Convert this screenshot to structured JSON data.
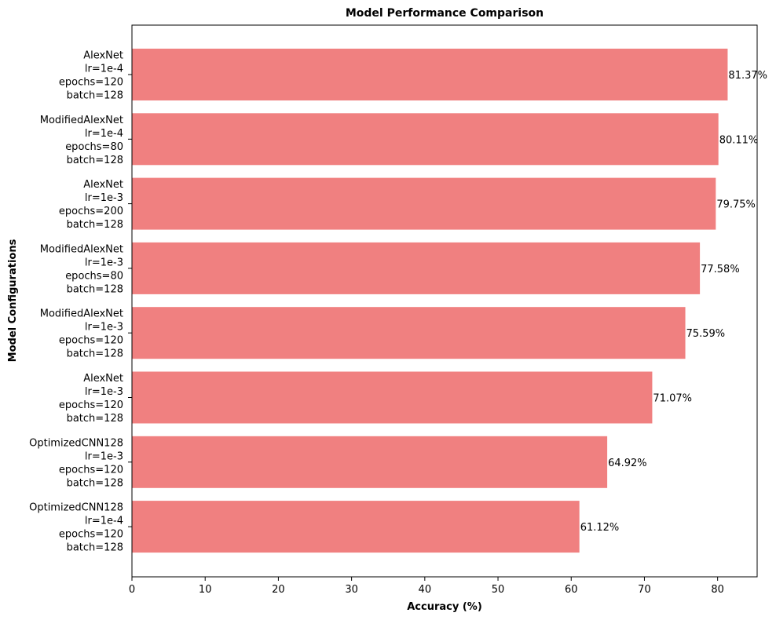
{
  "chart_data": {
    "type": "bar",
    "orientation": "horizontal",
    "title": "Model Performance Comparison",
    "xlabel": "Accuracy (%)",
    "ylabel": "Model Configurations",
    "xlim": [
      0,
      85.4
    ],
    "xticks": [
      0,
      10,
      20,
      30,
      40,
      50,
      60,
      70,
      80
    ],
    "bar_color": "#f08080",
    "value_suffix": "%",
    "categories": [
      [
        "AlexNet",
        "lr=1e-4",
        "epochs=120",
        "batch=128"
      ],
      [
        "ModifiedAlexNet",
        "lr=1e-4",
        "epochs=80",
        "batch=128"
      ],
      [
        "AlexNet",
        "lr=1e-3",
        "epochs=200",
        "batch=128"
      ],
      [
        "ModifiedAlexNet",
        "lr=1e-3",
        "epochs=80",
        "batch=128"
      ],
      [
        "ModifiedAlexNet",
        "lr=1e-3",
        "epochs=120",
        "batch=128"
      ],
      [
        "AlexNet",
        "lr=1e-3",
        "epochs=120",
        "batch=128"
      ],
      [
        "OptimizedCNN128",
        "lr=1e-3",
        "epochs=120",
        "batch=128"
      ],
      [
        "OptimizedCNN128",
        "lr=1e-4",
        "epochs=120",
        "batch=128"
      ]
    ],
    "values": [
      81.37,
      80.11,
      79.75,
      77.58,
      75.59,
      71.07,
      64.92,
      61.12
    ],
    "grid": false,
    "legend": "none"
  }
}
